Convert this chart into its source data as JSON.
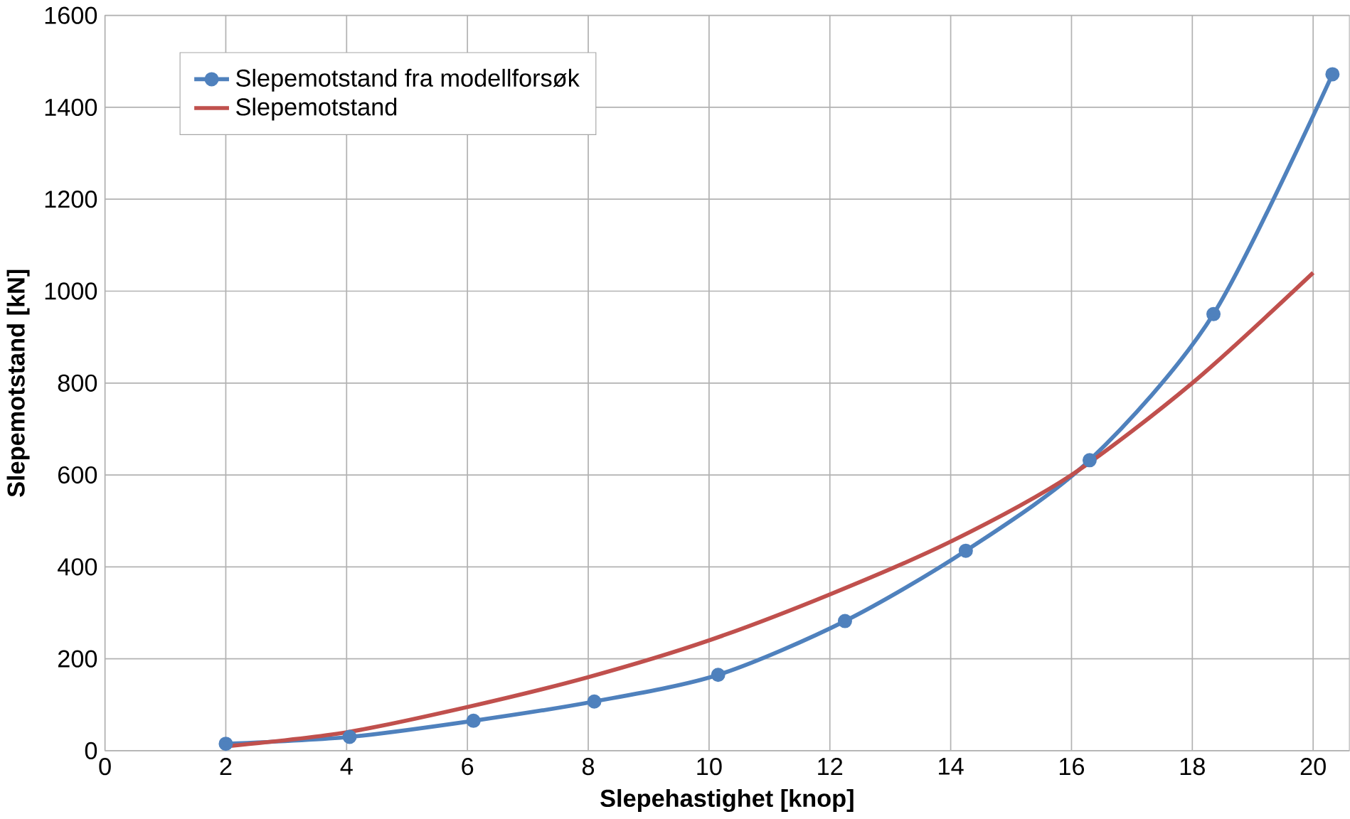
{
  "chart_data": {
    "type": "line",
    "xlabel": "Slepehastighet  [knop]",
    "ylabel": "Slepemotstand  [kN]",
    "xlim": [
      0,
      20.6
    ],
    "xticks": [
      0,
      2,
      4,
      6,
      8,
      10,
      12,
      14,
      16,
      18,
      20
    ],
    "ylim": [
      0,
      1600
    ],
    "yticks": [
      0,
      200,
      400,
      600,
      800,
      1000,
      1200,
      1400,
      1600
    ],
    "grid": true,
    "legend": "top left",
    "series": [
      {
        "name": "Slepemotstand fra modellforsøk",
        "color": "#4f81bd",
        "marker": "circle",
        "x": [
          2.0,
          4.05,
          6.1,
          8.1,
          10.15,
          12.25,
          14.25,
          16.3,
          18.35,
          20.32
        ],
        "values": [
          15,
          30,
          65,
          107,
          165,
          282,
          435,
          632,
          950,
          1472
        ]
      },
      {
        "name": "Slepemotstand",
        "color": "#c0504d",
        "marker": "none",
        "x": [
          2.05,
          4,
          6,
          8,
          10,
          12,
          14,
          16,
          18,
          20
        ],
        "values": [
          10,
          40,
          95,
          160,
          240,
          340,
          455,
          600,
          800,
          1040
        ]
      }
    ]
  }
}
